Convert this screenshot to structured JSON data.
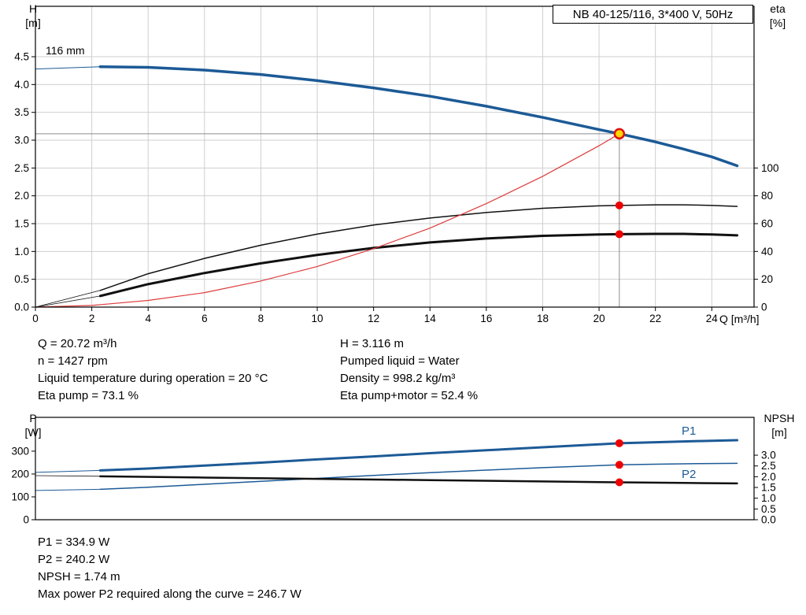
{
  "info_left": [
    "Q = 20.72 m³/h",
    "n = 1427 rpm",
    "Liquid temperature during operation = 20 °C",
    "Eta pump = 73.1 %"
  ],
  "info_right": [
    "H = 3.116 m",
    "Pumped liquid = Water",
    "Density = 998.2 kg/m³",
    "Eta pump+motor = 52.4 %"
  ],
  "info_power": [
    "P1 = 334.9 W",
    "P2 = 240.2 W",
    "NPSH = 1.74 m",
    "Max power P2 required along the curve = 246.7 W"
  ],
  "colors": {
    "curve_blue": "#1c5a96",
    "curve_black": "#111111",
    "curve_red": "#dd3c3c",
    "marker_red": "#ee0000",
    "duty_fill": "#ffd800",
    "duty_ring": "#e01010",
    "grid": "#cfcfcf",
    "crosshair": "#8c8c8c"
  },
  "chart_data": [
    {
      "name": "head-efficiency-chart",
      "type": "line",
      "title": "NB 40-125/116, 3*400 V, 50Hz",
      "xlabel": "Q [m³/h]",
      "ylabel": "H\n[m]",
      "ylabel_right": "eta\n[%]",
      "xlim": [
        0,
        25.5
      ],
      "ylim_left": [
        0,
        5.406
      ],
      "ylim_right": [
        0,
        216.2
      ],
      "grid": true,
      "grid_color": "#cfcfcf",
      "annotations": [
        {
          "text": "116 mm"
        }
      ],
      "x_ticks": {
        "values": [
          0,
          2,
          4,
          6,
          8,
          10,
          12,
          14,
          16,
          18,
          20,
          22,
          24
        ],
        "labels": [
          "0",
          "2",
          "4",
          "6",
          "8",
          "10",
          "12",
          "14",
          "16",
          "18",
          "20",
          "22",
          "24"
        ]
      },
      "y_ticks_left": {
        "values": [
          0,
          0.5,
          1.0,
          1.5,
          2.0,
          2.5,
          3.0,
          3.5,
          4.0,
          4.5
        ],
        "labels": [
          "0.0",
          "0.5",
          "1.0",
          "1.5",
          "2.0",
          "2.5",
          "3.0",
          "3.5",
          "4.0",
          "4.5"
        ]
      },
      "y_ticks_right": {
        "values": [
          0,
          20,
          40,
          60,
          80,
          100
        ],
        "labels": [
          "0",
          "20",
          "40",
          "60",
          "80",
          "100"
        ]
      },
      "duty_crosshair": {
        "q": 20.72,
        "h": 3.116
      },
      "series": [
        {
          "name": "pump-curve-lead",
          "axis": "left",
          "color": "#1c5a96",
          "width": 1,
          "points": [
            [
              0,
              4.28
            ],
            [
              1.2,
              4.3
            ],
            [
              2.3,
              4.32
            ]
          ]
        },
        {
          "name": "pump-curve",
          "axis": "left",
          "color": "#1c5a96",
          "width": 3.5,
          "points": [
            [
              2.3,
              4.32
            ],
            [
              4,
              4.31
            ],
            [
              6,
              4.26
            ],
            [
              8,
              4.18
            ],
            [
              10,
              4.07
            ],
            [
              12,
              3.94
            ],
            [
              14,
              3.79
            ],
            [
              16,
              3.61
            ],
            [
              18,
              3.41
            ],
            [
              20,
              3.19
            ],
            [
              20.72,
              3.116
            ],
            [
              22,
              2.97
            ],
            [
              23,
              2.84
            ],
            [
              24,
              2.7
            ],
            [
              24.9,
              2.54
            ]
          ]
        },
        {
          "name": "eta-pump-curve-lead",
          "axis": "right",
          "color": "#111111",
          "width": 0.8,
          "points": [
            [
              0,
              0
            ],
            [
              2.3,
              12
            ]
          ]
        },
        {
          "name": "eta-pump-curve",
          "axis": "right",
          "color": "#111111",
          "width": 1.5,
          "points": [
            [
              2.3,
              12
            ],
            [
              4,
              24
            ],
            [
              6,
              35
            ],
            [
              8,
              44.5
            ],
            [
              10,
              52.5
            ],
            [
              12,
              59
            ],
            [
              14,
              64
            ],
            [
              16,
              68
            ],
            [
              18,
              71
            ],
            [
              20,
              72.8
            ],
            [
              20.72,
              73.1
            ],
            [
              22,
              73.5
            ],
            [
              23,
              73.5
            ],
            [
              24,
              73.1
            ],
            [
              24.9,
              72.4
            ]
          ]
        },
        {
          "name": "eta-pump-motor-curve-lead",
          "axis": "right",
          "color": "#111111",
          "width": 0.8,
          "points": [
            [
              0,
              0
            ],
            [
              2.3,
              8
            ]
          ]
        },
        {
          "name": "eta-pump-motor-curve",
          "axis": "right",
          "color": "#111111",
          "width": 3,
          "points": [
            [
              2.3,
              8
            ],
            [
              4,
              16.5
            ],
            [
              6,
              24.5
            ],
            [
              8,
              31.5
            ],
            [
              10,
              37.5
            ],
            [
              12,
              42.5
            ],
            [
              14,
              46.5
            ],
            [
              16,
              49.3
            ],
            [
              18,
              51.2
            ],
            [
              20,
              52.2
            ],
            [
              20.72,
              52.4
            ],
            [
              22,
              52.6
            ],
            [
              23,
              52.6
            ],
            [
              24,
              52.2
            ],
            [
              24.9,
              51.6
            ]
          ]
        },
        {
          "name": "system-curve",
          "axis": "left",
          "color": "#dd3c3c",
          "width": 1.2,
          "points": [
            [
              0,
              0
            ],
            [
              2,
              0.03
            ],
            [
              4,
              0.12
            ],
            [
              6,
              0.26
            ],
            [
              8,
              0.47
            ],
            [
              10,
              0.73
            ],
            [
              12,
              1.05
            ],
            [
              14,
              1.42
            ],
            [
              16,
              1.86
            ],
            [
              18,
              2.35
            ],
            [
              20,
              2.9
            ],
            [
              20.72,
              3.116
            ]
          ]
        }
      ],
      "markers": [
        {
          "name": "duty-point-marker",
          "q": 20.72,
          "value": 3.116,
          "axis": "left",
          "style": "duty",
          "fill": "#ffd800",
          "stroke": "#e01010"
        },
        {
          "name": "eta-pump-marker",
          "q": 20.72,
          "value": 73.1,
          "axis": "right",
          "fill": "#ee0000"
        },
        {
          "name": "eta-pump-motor-marker",
          "q": 20.72,
          "value": 52.4,
          "axis": "right",
          "fill": "#ee0000"
        }
      ]
    },
    {
      "name": "power-npsh-chart",
      "type": "line",
      "title": "",
      "xlabel": "",
      "ylabel": "P\n[W]",
      "ylabel_right": "NPSH\n[m]",
      "xlim": [
        0,
        25.5
      ],
      "ylim_left": [
        0,
        448
      ],
      "ylim_right": [
        0,
        4.76
      ],
      "grid": false,
      "grid_color": "#cfcfcf",
      "curve_labels": {
        "p1": "P1",
        "p2": "P2"
      },
      "x_ticks": {
        "values": [],
        "labels": []
      },
      "y_ticks_left": {
        "values": [
          0,
          100,
          200,
          300
        ],
        "labels": [
          "0",
          "100",
          "200",
          "300"
        ]
      },
      "y_ticks_right": {
        "values": [
          0,
          0.5,
          1.0,
          1.5,
          2.0,
          2.5,
          3.0
        ],
        "labels": [
          "0.0",
          "0.5",
          "1.0",
          "1.5",
          "2.0",
          "2.5",
          "3.0"
        ]
      },
      "series": [
        {
          "name": "p1-curve-lead",
          "axis": "left",
          "color": "#1c5a96",
          "width": 1,
          "points": [
            [
              0,
              207
            ],
            [
              2.3,
              216
            ]
          ]
        },
        {
          "name": "p1-curve",
          "axis": "left",
          "color": "#1c5a96",
          "width": 3,
          "points": [
            [
              2.3,
              216
            ],
            [
              4,
              224
            ],
            [
              6,
              237
            ],
            [
              8,
              250
            ],
            [
              10,
              264
            ],
            [
              12,
              277
            ],
            [
              14,
              291
            ],
            [
              16,
              304
            ],
            [
              18,
              317
            ],
            [
              20,
              330
            ],
            [
              20.72,
              334.9
            ],
            [
              22,
              339
            ],
            [
              23.5,
              344
            ],
            [
              24.9,
              348
            ]
          ]
        },
        {
          "name": "p2-curve-lead",
          "axis": "left",
          "color": "#1c5a96",
          "width": 1,
          "points": [
            [
              0,
              128
            ],
            [
              2.3,
              133
            ]
          ]
        },
        {
          "name": "p2-curve",
          "axis": "left",
          "color": "#1c5a96",
          "width": 1.5,
          "points": [
            [
              2.3,
              133
            ],
            [
              4,
              142
            ],
            [
              6,
              155
            ],
            [
              8,
              168
            ],
            [
              10,
              181
            ],
            [
              12,
              194
            ],
            [
              14,
              206
            ],
            [
              16,
              217
            ],
            [
              18,
              228
            ],
            [
              20,
              237
            ],
            [
              20.72,
              240.2
            ],
            [
              22,
              243
            ],
            [
              23.5,
              245.6
            ],
            [
              24.9,
              246.7
            ]
          ]
        },
        {
          "name": "npsh-curve-lead",
          "axis": "right",
          "color": "#111111",
          "width": 0.8,
          "points": [
            [
              0,
              2.05
            ],
            [
              2.3,
              2.02
            ]
          ]
        },
        {
          "name": "npsh-curve",
          "axis": "right",
          "color": "#111111",
          "width": 2.5,
          "points": [
            [
              2.3,
              2.02
            ],
            [
              6,
              1.96
            ],
            [
              10,
              1.9
            ],
            [
              14,
              1.84
            ],
            [
              18,
              1.78
            ],
            [
              20.72,
              1.74
            ],
            [
              23,
              1.71
            ],
            [
              24.9,
              1.69
            ]
          ]
        }
      ],
      "markers": [
        {
          "name": "p1-marker",
          "q": 20.72,
          "value": 334.9,
          "axis": "left",
          "fill": "#ee0000"
        },
        {
          "name": "p2-marker",
          "q": 20.72,
          "value": 240.2,
          "axis": "left",
          "fill": "#ee0000"
        },
        {
          "name": "npsh-marker",
          "q": 20.72,
          "value": 1.74,
          "axis": "right",
          "fill": "#ee0000"
        }
      ]
    }
  ]
}
